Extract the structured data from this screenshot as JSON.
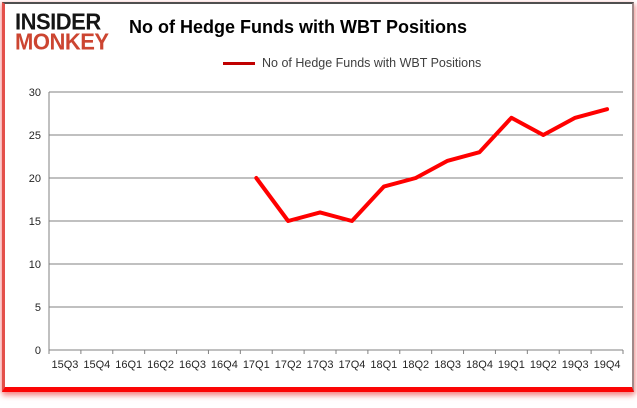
{
  "logo": {
    "line1": "INSIDER",
    "line2": "MONKEY"
  },
  "header": {
    "title": "No of Hedge Funds with WBT Positions"
  },
  "legend": {
    "label": "No of Hedge Funds with WBT Positions"
  },
  "colors": {
    "line": "#ff0000",
    "legend_swatch": "#c00000",
    "grid": "#808080",
    "axis": "#808080",
    "tick_text": "#262626",
    "logo_red": "#cc4531",
    "frame_bottom_red": "#fb0505"
  },
  "chart_data": {
    "type": "line",
    "title": "No of Hedge Funds with WBT Positions",
    "categories": [
      "15Q3",
      "15Q4",
      "16Q1",
      "16Q2",
      "16Q3",
      "16Q4",
      "17Q1",
      "17Q2",
      "17Q3",
      "17Q4",
      "18Q1",
      "18Q2",
      "18Q3",
      "18Q4",
      "19Q1",
      "19Q2",
      "19Q3",
      "19Q4"
    ],
    "series": [
      {
        "name": "No of Hedge Funds with WBT Positions",
        "values": [
          null,
          null,
          null,
          null,
          null,
          null,
          20,
          15,
          16,
          15,
          19,
          20,
          22,
          23,
          27,
          25,
          27,
          28
        ]
      }
    ],
    "xlabel": "",
    "ylabel": "",
    "ylim": [
      0,
      30
    ],
    "ytick_step": 5,
    "grid": true,
    "legend_position": "top-center"
  }
}
